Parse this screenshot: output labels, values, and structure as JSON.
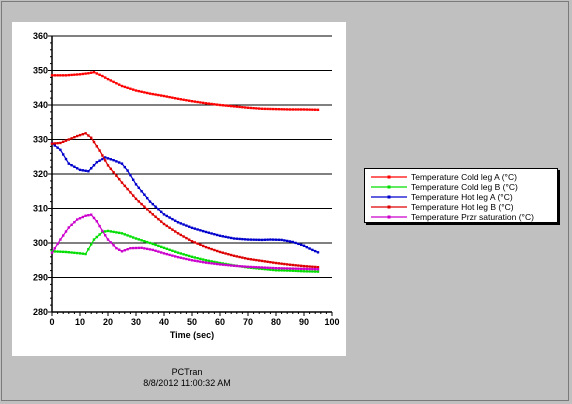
{
  "footer": {
    "app": "PCTran",
    "timestamp": "8/8/2012 11:00:32 AM"
  },
  "chart_data": {
    "type": "line",
    "title": "",
    "xlabel": "Time (sec)",
    "ylabel": "",
    "xlim": [
      0,
      100
    ],
    "ylim": [
      280,
      360
    ],
    "x_ticks": [
      0,
      10,
      20,
      30,
      40,
      50,
      60,
      70,
      80,
      90,
      100
    ],
    "y_ticks": [
      280,
      290,
      300,
      310,
      320,
      330,
      340,
      350,
      360
    ],
    "grid": "horizontal",
    "legend_position": "right",
    "series": [
      {
        "name": "Temperature Cold leg A (°C)",
        "color": "#ff0000",
        "points": [
          [
            0,
            348.6
          ],
          [
            5,
            348.6
          ],
          [
            10,
            348.9
          ],
          [
            13,
            349.2
          ],
          [
            15,
            349.5
          ],
          [
            18,
            348.4
          ],
          [
            20,
            347.5
          ],
          [
            25,
            345.5
          ],
          [
            30,
            344.2
          ],
          [
            35,
            343.3
          ],
          [
            40,
            342.6
          ],
          [
            45,
            341.8
          ],
          [
            50,
            341.1
          ],
          [
            55,
            340.5
          ],
          [
            60,
            340.0
          ],
          [
            65,
            339.6
          ],
          [
            70,
            339.2
          ],
          [
            75,
            338.9
          ],
          [
            80,
            338.8
          ],
          [
            85,
            338.7
          ],
          [
            90,
            338.7
          ],
          [
            95,
            338.6
          ]
        ]
      },
      {
        "name": "Temperature Cold leg B (°C)",
        "color": "#00dd00",
        "points": [
          [
            0,
            297.6
          ],
          [
            5,
            297.4
          ],
          [
            10,
            297.0
          ],
          [
            12,
            296.8
          ],
          [
            15,
            301.0
          ],
          [
            18,
            303.2
          ],
          [
            20,
            303.5
          ],
          [
            25,
            302.8
          ],
          [
            30,
            301.3
          ],
          [
            35,
            300.0
          ],
          [
            40,
            298.6
          ],
          [
            45,
            297.2
          ],
          [
            50,
            296.0
          ],
          [
            55,
            295.0
          ],
          [
            60,
            294.2
          ],
          [
            65,
            293.5
          ],
          [
            70,
            292.9
          ],
          [
            75,
            292.5
          ],
          [
            80,
            292.1
          ],
          [
            85,
            292.0
          ],
          [
            90,
            291.8
          ],
          [
            95,
            291.7
          ]
        ]
      },
      {
        "name": "Temperature Hot leg A (°C)",
        "color": "#0000cc",
        "points": [
          [
            0,
            328.9
          ],
          [
            3,
            327.0
          ],
          [
            6,
            323.0
          ],
          [
            10,
            321.2
          ],
          [
            13,
            320.8
          ],
          [
            16,
            323.4
          ],
          [
            19,
            324.8
          ],
          [
            22,
            324.0
          ],
          [
            25,
            323.0
          ],
          [
            27,
            321.0
          ],
          [
            30,
            317.0
          ],
          [
            35,
            312.0
          ],
          [
            40,
            308.3
          ],
          [
            45,
            306.0
          ],
          [
            50,
            304.4
          ],
          [
            55,
            303.2
          ],
          [
            60,
            302.1
          ],
          [
            65,
            301.3
          ],
          [
            70,
            301.0
          ],
          [
            75,
            300.9
          ],
          [
            78,
            301.0
          ],
          [
            82,
            300.9
          ],
          [
            86,
            300.3
          ],
          [
            90,
            299.2
          ],
          [
            93,
            298.0
          ],
          [
            95,
            297.3
          ]
        ]
      },
      {
        "name": "Temperature Hot leg B (°C)",
        "color": "#dd0000",
        "points": [
          [
            0,
            328.8
          ],
          [
            3,
            329.0
          ],
          [
            6,
            330.0
          ],
          [
            9,
            331.0
          ],
          [
            12,
            331.8
          ],
          [
            14,
            330.5
          ],
          [
            17,
            326.8
          ],
          [
            20,
            322.5
          ],
          [
            25,
            317.5
          ],
          [
            30,
            312.8
          ],
          [
            35,
            309.0
          ],
          [
            40,
            305.5
          ],
          [
            45,
            302.8
          ],
          [
            50,
            300.5
          ],
          [
            55,
            298.8
          ],
          [
            60,
            297.4
          ],
          [
            65,
            296.3
          ],
          [
            70,
            295.4
          ],
          [
            75,
            294.8
          ],
          [
            80,
            294.2
          ],
          [
            85,
            293.7
          ],
          [
            90,
            293.3
          ],
          [
            95,
            293.0
          ]
        ]
      },
      {
        "name": "Temperature Przr saturation (°C)",
        "color": "#cc00cc",
        "points": [
          [
            0,
            297.2
          ],
          [
            3,
            301.0
          ],
          [
            6,
            304.5
          ],
          [
            9,
            306.8
          ],
          [
            12,
            307.9
          ],
          [
            14,
            308.2
          ],
          [
            16,
            306.3
          ],
          [
            18,
            303.5
          ],
          [
            20,
            301.0
          ],
          [
            23,
            298.5
          ],
          [
            25,
            297.6
          ],
          [
            28,
            298.5
          ],
          [
            32,
            298.6
          ],
          [
            36,
            298.0
          ],
          [
            40,
            297.0
          ],
          [
            45,
            295.9
          ],
          [
            50,
            295.0
          ],
          [
            55,
            294.3
          ],
          [
            60,
            293.8
          ],
          [
            65,
            293.4
          ],
          [
            70,
            293.1
          ],
          [
            75,
            292.9
          ],
          [
            80,
            292.7
          ],
          [
            85,
            292.6
          ],
          [
            90,
            292.5
          ],
          [
            95,
            292.4
          ]
        ]
      }
    ]
  }
}
